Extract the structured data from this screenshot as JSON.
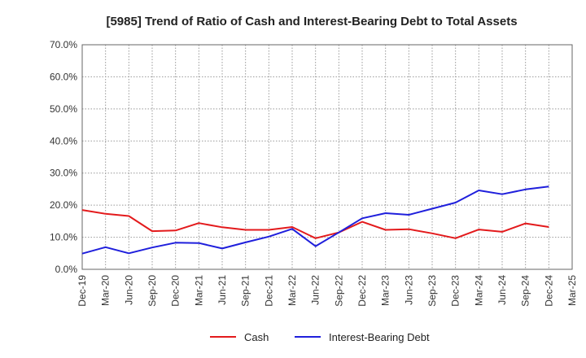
{
  "chart_data": {
    "type": "line",
    "title": "[5985]  Trend of Ratio of Cash and Interest-Bearing Debt to Total Assets",
    "xlabel": "",
    "ylabel": "",
    "categories": [
      "Dec-19",
      "Mar-20",
      "Jun-20",
      "Sep-20",
      "Dec-20",
      "Mar-21",
      "Jun-21",
      "Sep-21",
      "Dec-21",
      "Mar-22",
      "Jun-22",
      "Sep-22",
      "Dec-22",
      "Mar-23",
      "Jun-23",
      "Sep-23",
      "Dec-23",
      "Mar-24",
      "Jun-24",
      "Sep-24",
      "Dec-24",
      "Mar-25"
    ],
    "ylim": [
      0,
      70
    ],
    "yticks": [
      "0.0%",
      "10.0%",
      "20.0%",
      "30.0%",
      "40.0%",
      "50.0%",
      "60.0%",
      "70.0%"
    ],
    "ytick_values": [
      0,
      10,
      20,
      30,
      40,
      50,
      60,
      70
    ],
    "grid": true,
    "legend_position": "bottom",
    "series": [
      {
        "name": "Cash",
        "color": "#e31a1c",
        "values": [
          18.5,
          17.3,
          16.6,
          11.9,
          12.1,
          14.4,
          13.1,
          12.3,
          12.3,
          13.2,
          9.7,
          11.5,
          14.8,
          12.3,
          12.5,
          11.2,
          9.7,
          12.4,
          11.7,
          14.3,
          13.2,
          null
        ]
      },
      {
        "name": "Interest-Bearing Debt",
        "color": "#1f1fdc",
        "values": [
          4.9,
          6.9,
          5.0,
          6.8,
          8.3,
          8.2,
          6.5,
          8.4,
          10.2,
          12.6,
          7.2,
          11.5,
          15.9,
          17.5,
          17.0,
          18.9,
          20.8,
          24.6,
          23.4,
          24.9,
          25.8,
          null
        ]
      }
    ]
  }
}
